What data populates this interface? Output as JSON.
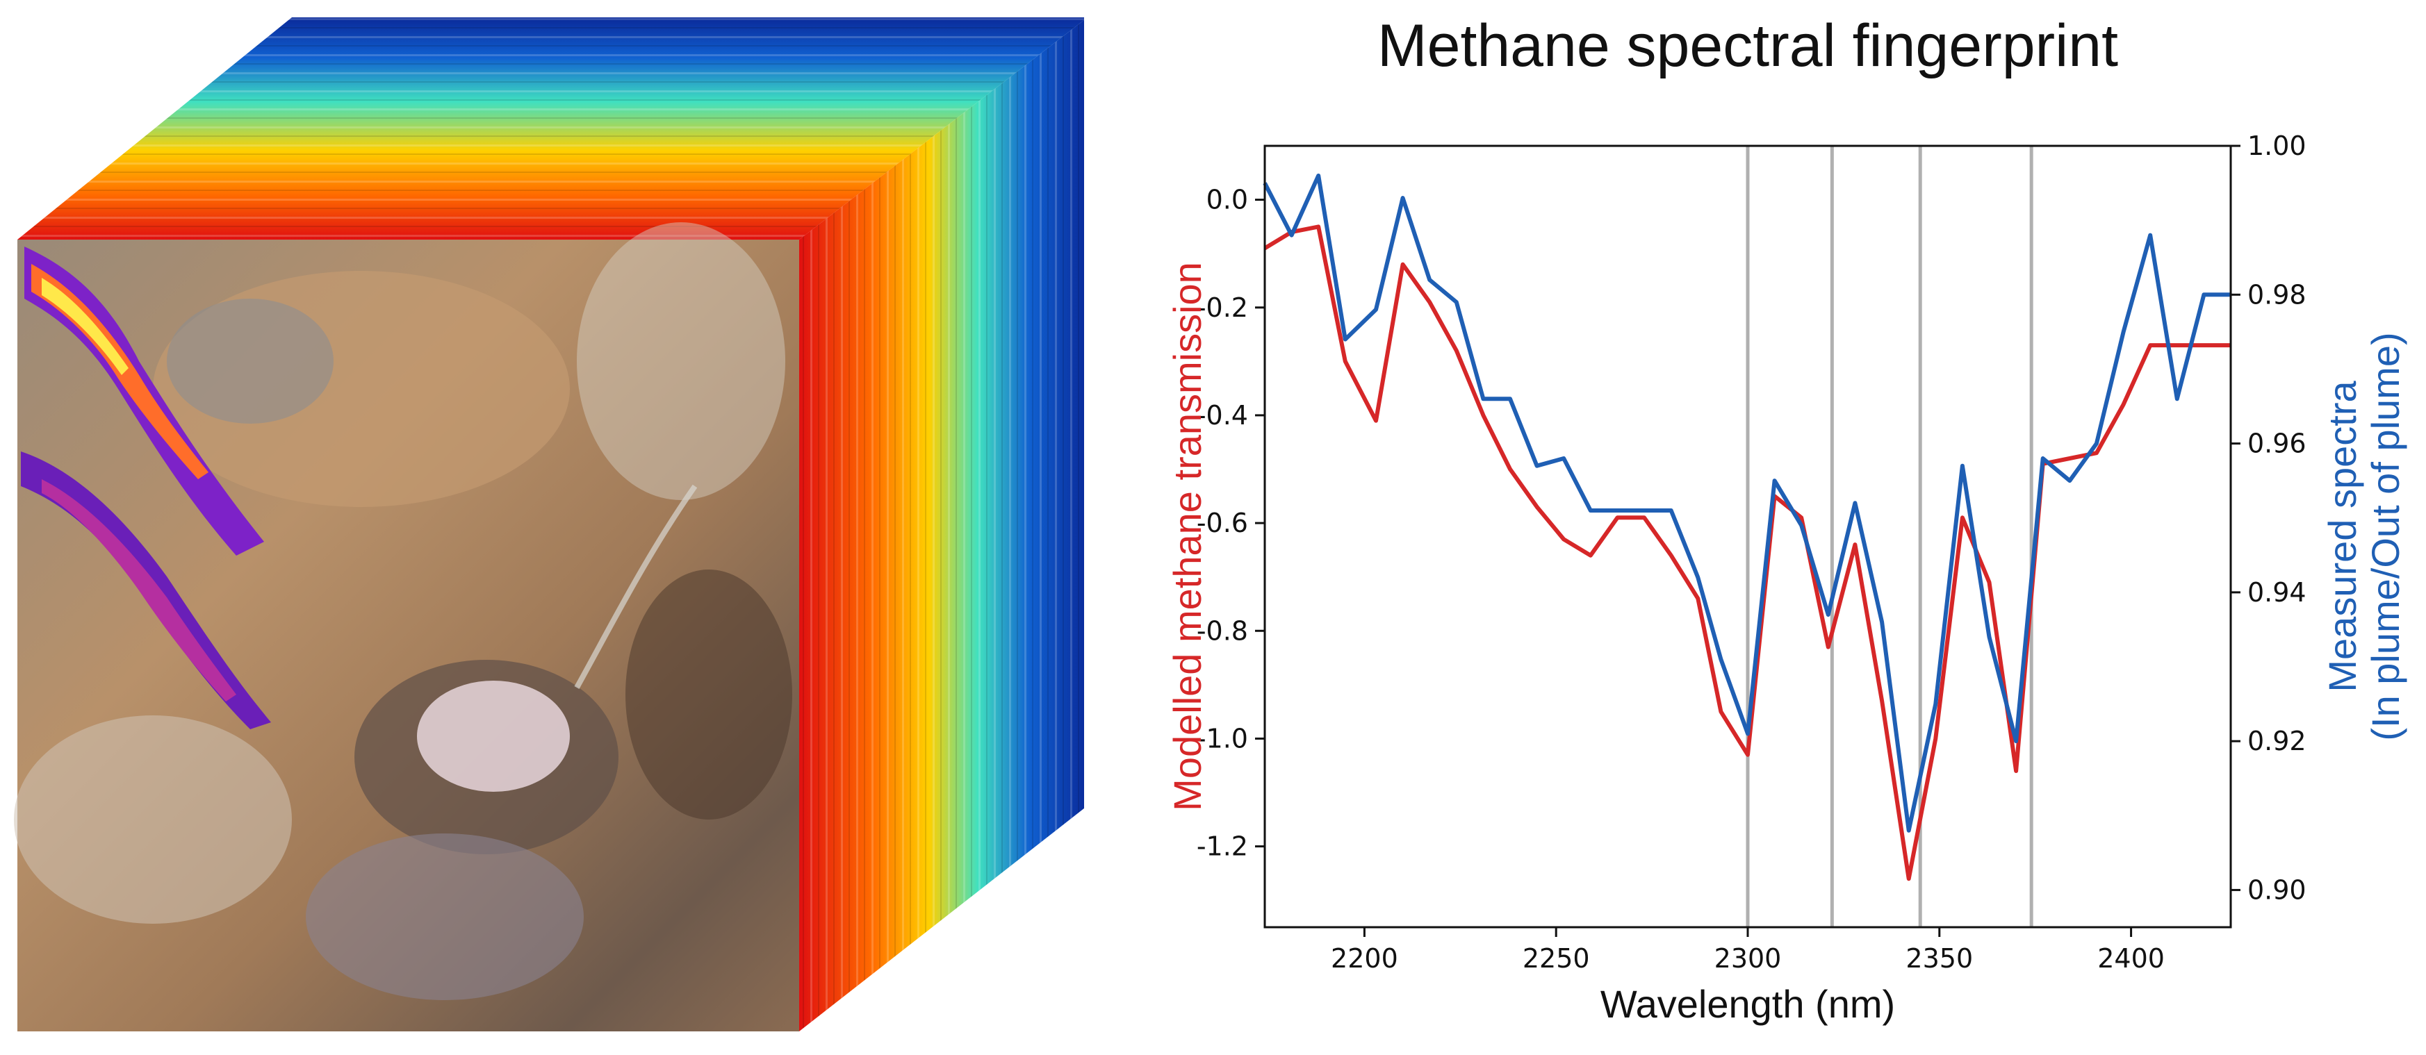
{
  "colors": {
    "modelled": "#d62728",
    "measured": "#1f5fb4",
    "refline": "#b0b0b0"
  },
  "chart_data": {
    "type": "line",
    "title": "Methane spectral fingerprint",
    "xlabel": "Wavelength (nm)",
    "ylabel_left": "Modelled methane transmission",
    "ylabel_right_line1": "Measured spectra",
    "ylabel_right_line2": "(In plume/Out of plume)",
    "xlim": [
      2174,
      2426
    ],
    "ylim_left": [
      -1.35,
      0.1
    ],
    "ylim_right": [
      0.895,
      1.0
    ],
    "xticks": [
      2200,
      2250,
      2300,
      2350,
      2400
    ],
    "yticks_left": [
      0.0,
      -0.2,
      -0.4,
      -0.6,
      -0.8,
      -1.0,
      -1.2
    ],
    "yticks_right": [
      1.0,
      0.98,
      0.96,
      0.94,
      0.92,
      0.9
    ],
    "vlines": [
      2300,
      2322,
      2345,
      2374
    ],
    "grid": false,
    "series": [
      {
        "name": "Modelled methane transmission",
        "axis": "left",
        "color": "#d62728",
        "x": [
          2174,
          2181,
          2188,
          2195,
          2203,
          2210,
          2217,
          2224,
          2231,
          2238,
          2245,
          2252,
          2259,
          2266,
          2273,
          2280,
          2287,
          2293,
          2300,
          2307,
          2314,
          2321,
          2328,
          2335,
          2342,
          2349,
          2356,
          2363,
          2370,
          2377,
          2384,
          2391,
          2398,
          2405,
          2412,
          2419,
          2426
        ],
        "values": [
          -0.09,
          -0.06,
          -0.05,
          -0.3,
          -0.41,
          -0.12,
          -0.19,
          -0.28,
          -0.4,
          -0.5,
          -0.57,
          -0.63,
          -0.66,
          -0.59,
          -0.59,
          -0.66,
          -0.74,
          -0.95,
          -1.03,
          -0.55,
          -0.59,
          -0.83,
          -0.64,
          -0.93,
          -1.26,
          -1.0,
          -0.59,
          -0.71,
          -1.06,
          -0.49,
          -0.48,
          -0.47,
          -0.38,
          -0.27,
          -0.27,
          -0.27,
          -0.27
        ]
      },
      {
        "name": "Measured spectra",
        "axis": "right",
        "color": "#1f5fb4",
        "x": [
          2174,
          2181,
          2188,
          2195,
          2203,
          2210,
          2217,
          2224,
          2231,
          2238,
          2245,
          2252,
          2259,
          2266,
          2273,
          2280,
          2287,
          2293,
          2300,
          2307,
          2314,
          2321,
          2328,
          2335,
          2342,
          2349,
          2356,
          2363,
          2370,
          2377,
          2384,
          2391,
          2398,
          2405,
          2412,
          2419,
          2426
        ],
        "values": [
          0.995,
          0.988,
          0.996,
          0.974,
          0.978,
          0.993,
          0.982,
          0.979,
          0.966,
          0.966,
          0.957,
          0.958,
          0.951,
          0.951,
          0.951,
          0.951,
          0.942,
          0.931,
          0.921,
          0.955,
          0.949,
          0.937,
          0.952,
          0.936,
          0.908,
          0.925,
          0.957,
          0.934,
          0.92,
          0.958,
          0.955,
          0.96,
          0.975,
          0.988,
          0.966,
          0.98,
          0.98
        ]
      }
    ]
  }
}
